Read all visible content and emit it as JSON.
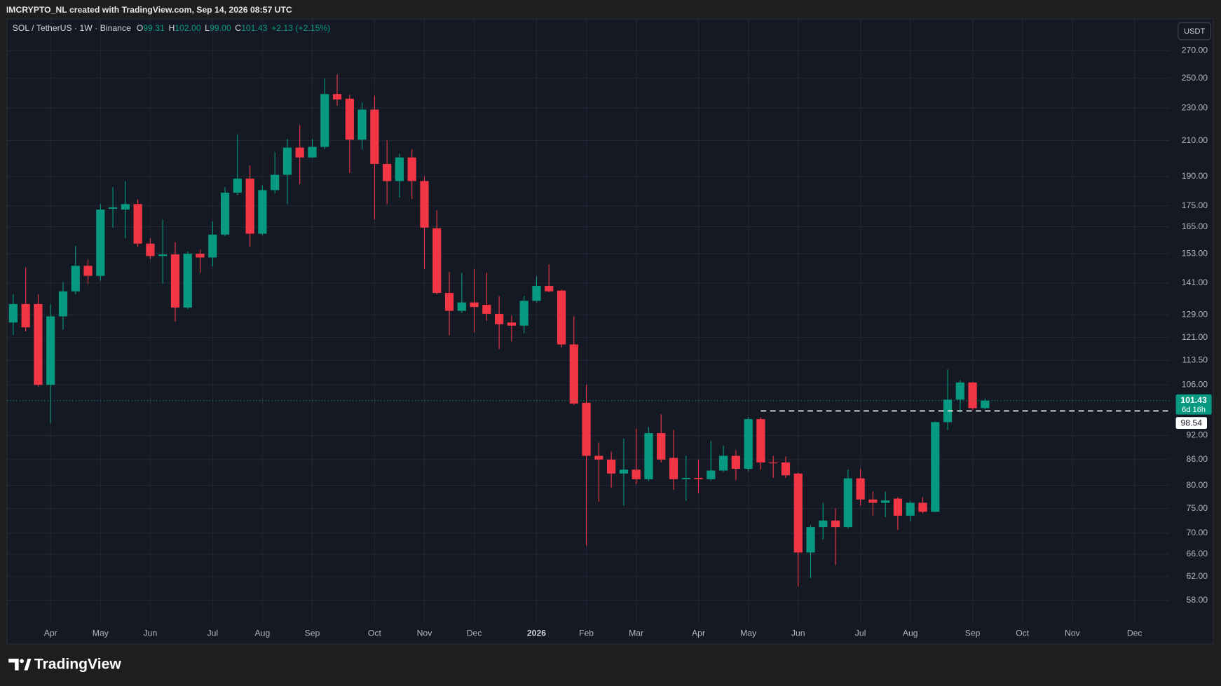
{
  "chart_data": {
    "type": "candlestick",
    "title": "IMCRYPTO_NL created with TradingView.com, Sep 14, 2026 08:57 UTC",
    "legend": {
      "symbol": "SOL / TetherUS · 1W · Binance",
      "o": "O",
      "open": "99.31",
      "h": "H",
      "high": "102.00",
      "l": "L",
      "low": "99.00",
      "c": "C",
      "close": "101.43",
      "change": "+2.13 (+2.15%)"
    },
    "currency": "USDT",
    "countdown": "6d 16h",
    "level": 98.54,
    "brand": "TradingView",
    "up_color": "#089981",
    "down_color": "#f23645",
    "log_scale": true,
    "grid": true,
    "categories": [
      null,
      null,
      null,
      "Apr",
      null,
      null,
      null,
      "May",
      null,
      null,
      null,
      "Jun",
      null,
      null,
      null,
      null,
      "Jul",
      null,
      null,
      null,
      "Aug",
      null,
      null,
      null,
      "Sep",
      null,
      null,
      null,
      null,
      "Oct",
      null,
      null,
      null,
      "Nov",
      null,
      null,
      null,
      "Dec",
      null,
      null,
      null,
      null,
      "2026",
      null,
      null,
      null,
      "Feb",
      null,
      null,
      null,
      "Mar",
      null,
      null,
      null,
      null,
      "Apr",
      null,
      null,
      null,
      "May",
      null,
      null,
      null,
      "Jun",
      null,
      null,
      null,
      null,
      "Jul",
      null,
      null,
      null,
      "Aug",
      null,
      null,
      null,
      null,
      "Sep",
      null,
      null,
      null,
      "Oct",
      null,
      null,
      null,
      "Nov",
      null,
      null,
      null,
      null,
      "Dec",
      null,
      null
    ],
    "open": [
      126.2,
      132.9,
      132.9,
      106.0,
      128.4,
      137.7,
      147.9,
      143.8,
      173.5,
      173.1,
      175.8,
      157.4,
      152.0,
      152.7,
      131.6,
      153.0,
      151.4,
      161.4,
      181.5,
      188.8,
      161.8,
      182.8,
      190.8,
      205.9,
      200.3,
      206.3,
      239.2,
      236.1,
      210.5,
      229.0,
      196.7,
      187.5,
      200.3,
      187.5,
      164.3,
      137.1,
      130.4,
      133.5,
      132.6,
      129.3,
      126.2,
      125.1,
      134.1,
      139.8,
      138.0,
      118.7,
      100.8,
      86.9,
      86.0,
      82.7,
      83.6,
      81.4,
      92.6,
      86.4,
      81.4,
      81.7,
      81.4,
      83.4,
      86.9,
      83.8,
      96.3,
      85.3,
      85.3,
      82.7,
      66.3,
      71.2,
      72.5,
      71.2,
      81.6,
      76.9,
      76.2,
      77.1,
      73.5,
      76.2,
      74.3,
      95.5,
      101.7,
      106.7,
      99.31,
      null,
      null,
      null,
      null,
      null,
      null,
      null,
      null,
      null,
      null,
      null,
      null,
      null,
      null
    ],
    "high": [
      136.5,
      147.3,
      136.5,
      132.9,
      141.3,
      156.4,
      150.3,
      175.8,
      184.3,
      187.5,
      178.1,
      159.7,
      168.3,
      158.0,
      154.0,
      154.7,
      167.5,
      184.3,
      213.8,
      195.9,
      185.1,
      203.3,
      210.9,
      219.2,
      210.9,
      250.0,
      252.7,
      238.7,
      233.5,
      238.1,
      210.0,
      202.4,
      204.9,
      190.0,
      172.7,
      145.4,
      145.1,
      146.6,
      145.1,
      135.9,
      128.7,
      135.9,
      143.5,
      148.5,
      138.3,
      128.4,
      106.0,
      90.2,
      87.9,
      91.2,
      93.8,
      94.2,
      97.6,
      93.4,
      86.9,
      86.0,
      90.6,
      89.4,
      88.3,
      96.8,
      96.8,
      86.9,
      86.7,
      82.9,
      71.6,
      76.2,
      75.0,
      83.6,
      83.8,
      78.6,
      78.6,
      77.4,
      76.6,
      77.4,
      95.7,
      110.7,
      107.4,
      106.9,
      102,
      null,
      null,
      null,
      null,
      null,
      null,
      null,
      null,
      null,
      null,
      null,
      null,
      null,
      null
    ],
    "low": [
      121.8,
      123.1,
      105.5,
      95.3,
      123.7,
      136.5,
      140.7,
      141.9,
      164.6,
      159.7,
      156.0,
      150.7,
      140.7,
      126.5,
      131.0,
      145.1,
      147.6,
      160.7,
      180.3,
      156.0,
      161.1,
      181.1,
      175.8,
      185.9,
      200.0,
      205.0,
      231.5,
      191.7,
      204.9,
      168.3,
      175.8,
      179.1,
      178.3,
      146.6,
      136.5,
      121.8,
      129.6,
      122.8,
      126.8,
      117.2,
      119.7,
      122.5,
      133.5,
      137.4,
      117.7,
      100.2,
      67.6,
      76.4,
      79.5,
      75.6,
      80.3,
      81.0,
      85.3,
      79.0,
      76.6,
      78.3,
      81.0,
      83.1,
      81.2,
      83.2,
      83.6,
      81.7,
      81.7,
      60.3,
      61.7,
      68.8,
      64.0,
      70.9,
      75.6,
      73.5,
      73.2,
      70.6,
      72.3,
      74.0,
      74.2,
      93.4,
      98.0,
      98.8,
      99,
      null,
      null,
      null,
      null,
      null,
      null,
      null,
      null,
      null,
      null,
      null,
      null,
      null,
      null
    ],
    "close": [
      132.9,
      124.5,
      106.0,
      128.4,
      137.7,
      147.9,
      143.8,
      173.1,
      174.2,
      175.8,
      157.4,
      152.0,
      152.7,
      131.6,
      153.0,
      151.4,
      161.4,
      181.5,
      188.8,
      161.8,
      182.8,
      190.8,
      205.9,
      200.3,
      206.3,
      239.2,
      235.6,
      210.5,
      229.0,
      196.7,
      187.5,
      200.3,
      187.5,
      164.6,
      137.1,
      130.4,
      133.5,
      131.8,
      129.3,
      125.6,
      125.1,
      134.1,
      139.8,
      137.7,
      118.7,
      100.6,
      86.9,
      86.0,
      82.7,
      83.6,
      81.4,
      92.6,
      86.0,
      81.4,
      81.7,
      81.4,
      83.4,
      86.9,
      83.8,
      96.3,
      85.3,
      85.1,
      82.3,
      66.3,
      71.2,
      72.5,
      71.2,
      81.6,
      76.9,
      76.2,
      76.7,
      73.5,
      76.2,
      74.3,
      95.5,
      101.7,
      106.7,
      99.3,
      101.43,
      null,
      null,
      null,
      null,
      null,
      null,
      null,
      null,
      null,
      null,
      null,
      null,
      null,
      null
    ],
    "ylim": [
      54.45,
      295.3
    ],
    "yticks": [
      {
        "value": 58,
        "label": "58.00"
      },
      {
        "value": 62,
        "label": "62.00"
      },
      {
        "value": 66,
        "label": "66.00"
      },
      {
        "value": 70,
        "label": "70.00"
      },
      {
        "value": 75,
        "label": "75.00"
      },
      {
        "value": 80,
        "label": "80.00"
      },
      {
        "value": 86,
        "label": "86.00"
      },
      {
        "value": 92,
        "label": "92.00"
      },
      {
        "value": 106,
        "label": "106.00"
      },
      {
        "value": 113.5,
        "label": "113.50"
      },
      {
        "value": 121,
        "label": "121.00"
      },
      {
        "value": 129,
        "label": "129.00"
      },
      {
        "value": 141,
        "label": "141.00"
      },
      {
        "value": 153,
        "label": "153.00"
      },
      {
        "value": 165,
        "label": "165.00"
      },
      {
        "value": 175,
        "label": "175.00"
      },
      {
        "value": 190,
        "label": "190.00"
      },
      {
        "value": 210,
        "label": "210.00"
      },
      {
        "value": 230,
        "label": "230.00"
      },
      {
        "value": 250,
        "label": "250.00"
      },
      {
        "value": 270,
        "label": "270.00"
      }
    ]
  }
}
